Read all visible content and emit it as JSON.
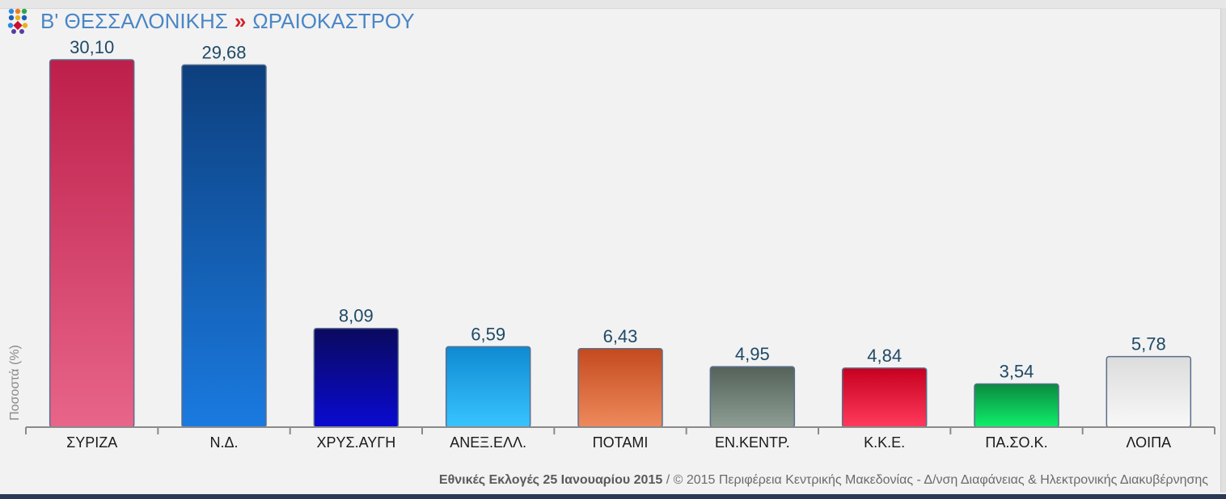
{
  "header": {
    "region": "Β' ΘΕΣΣΑΛΟΝΙΚΗΣ",
    "separator": "»",
    "municipality": "ΩΡΑΙΟΚΑΣΤΡΟΥ"
  },
  "footer": {
    "election": "Εθνικές Εκλογές 25 Ιανουαρίου 2015",
    "credit": " / © 2015 Περιφέρεια Κεντρικής Μακεδονίας - Δ/νση Διαφάνειας & Ηλεκτρονικής Διακυβέρνησης"
  },
  "chart_data": {
    "type": "bar",
    "ylabel": "Ποσοστά (%)",
    "ylim": [
      0,
      31
    ],
    "grid": false,
    "categories": [
      "ΣΥΡΙΖΑ",
      "Ν.Δ.",
      "ΧΡΥΣ.ΑΥΓΗ",
      "ΑΝΕΞ.ΕΛΛ.",
      "ΠΟΤΑΜΙ",
      "ΕΝ.ΚΕΝΤΡ.",
      "Κ.Κ.Ε.",
      "ΠΑ.ΣΟ.Κ.",
      "ΛΟΙΠΑ"
    ],
    "values": [
      30.1,
      29.68,
      8.09,
      6.59,
      6.43,
      4.95,
      4.84,
      3.54,
      5.78
    ],
    "value_labels": [
      "30,10",
      "29,68",
      "8,09",
      "6,59",
      "6,43",
      "4,95",
      "4,84",
      "3,54",
      "5,78"
    ],
    "colors": [
      [
        "#bd1f4a",
        "#e8658a"
      ],
      [
        "#0d3f7d",
        "#1a7ae0"
      ],
      [
        "#0a0a5e",
        "#0a0ad2"
      ],
      [
        "#0f8ad2",
        "#38c4ff"
      ],
      [
        "#c44a1e",
        "#ee8a5c"
      ],
      [
        "#54625a",
        "#8e9e94"
      ],
      [
        "#c7001f",
        "#ff3a5c"
      ],
      [
        "#0a8a40",
        "#10ef6a"
      ],
      [
        "#dcdcdc",
        "#f8f8f8"
      ]
    ]
  }
}
